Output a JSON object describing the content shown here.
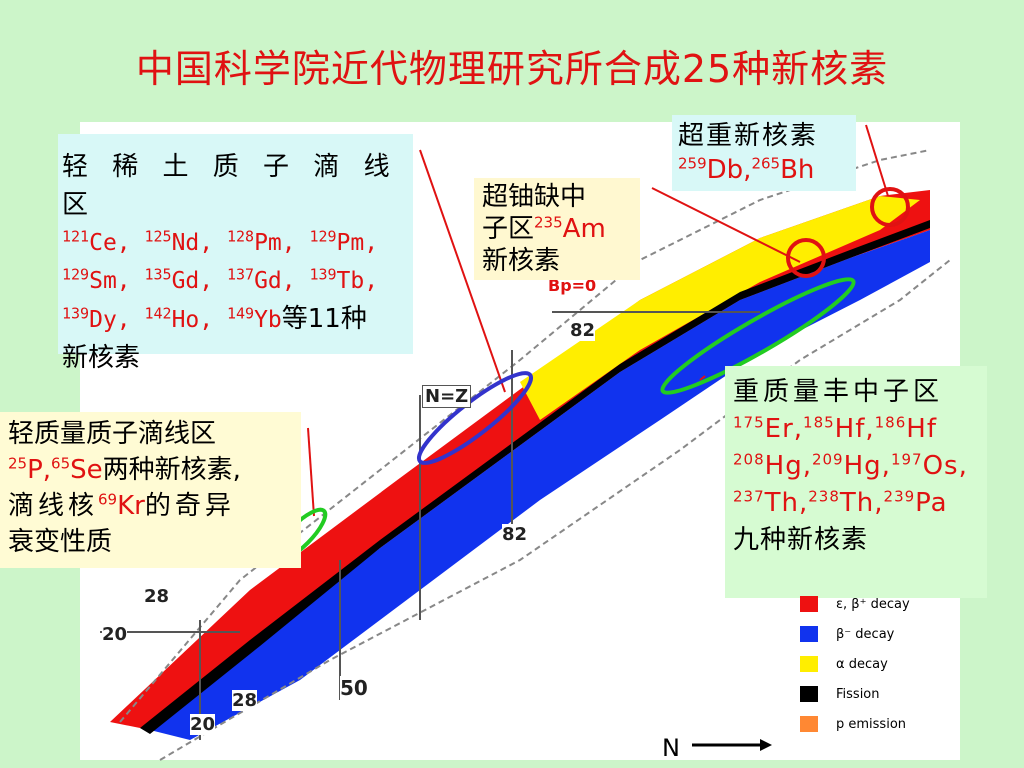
{
  "title": "中国科学院近代物理研究所合成25种新核素",
  "boxes": {
    "light_rare_earth": {
      "heading": "轻 稀 土 质 子 滴 线 区",
      "line1": [
        [
          "121",
          "Ce, "
        ],
        [
          "125",
          "Nd, "
        ],
        [
          "128",
          "Pm, "
        ],
        [
          "129",
          "Pm,"
        ]
      ],
      "line2": [
        [
          "129",
          "Sm, "
        ],
        [
          "135",
          "Gd, "
        ],
        [
          "137",
          "Gd, "
        ],
        [
          "139",
          "Tb,"
        ]
      ],
      "line3": [
        [
          "139",
          "Dy, "
        ],
        [
          "142",
          "Ho, "
        ],
        [
          "149",
          "Yb"
        ]
      ],
      "line3_tail": "等11种",
      "line4": "新核素"
    },
    "superheavy": {
      "heading": "超重新核素",
      "nuclides": [
        [
          "259",
          "Db,"
        ],
        [
          "265",
          "Bh"
        ]
      ]
    },
    "uranium_deficient": {
      "line1": "超铀缺中",
      "line2_prefix": "子区",
      "nuclide": [
        "235",
        "Am"
      ],
      "line3": "新核素"
    },
    "light_dripline": {
      "line1": "轻质量质子滴线区",
      "nuclides": [
        [
          "25",
          "P,"
        ],
        [
          "65",
          "Se"
        ]
      ],
      "line2_tail": "两种新核素,",
      "line3_prefix": "滴线核",
      "nuclide3": [
        "69",
        "Kr"
      ],
      "line3_tail": "的奇异",
      "line4": "衰变性质"
    },
    "heavy_neutron_rich": {
      "heading": "重质量丰中子区",
      "line2": [
        [
          "175",
          "Er,"
        ],
        [
          "185",
          "Hf,"
        ],
        [
          "186",
          "Hf"
        ]
      ],
      "line3": [
        [
          "208",
          "Hg,"
        ],
        [
          "209",
          "Hg,"
        ],
        [
          "197",
          "Os,"
        ]
      ],
      "line4": [
        [
          "237",
          "Th,"
        ],
        [
          "238",
          "Th,"
        ],
        [
          "239",
          "Pa"
        ]
      ],
      "line5": "九种新核素"
    }
  },
  "chart_labels": {
    "n_eq_z": "N=Z",
    "magic": [
      "82",
      "82",
      "50",
      "28",
      "28",
      "20",
      "20"
    ],
    "bp": "Bp=0",
    "axis": "N"
  },
  "legend": [
    {
      "label": "ε, β⁺ decay",
      "color": "#ee1111"
    },
    {
      "label": "β⁻ decay",
      "color": "#1133ee"
    },
    {
      "label": "α decay",
      "color": "#ffee00"
    },
    {
      "label": "Fission",
      "color": "#000000"
    },
    {
      "label": "p emission",
      "color": "#ff8833"
    }
  ],
  "colors": {
    "title": "#e01212",
    "background": "#ccf5c9",
    "circle_red": "#e01212",
    "circle_green": "#22cc22",
    "circle_blue": "#3333cc"
  }
}
